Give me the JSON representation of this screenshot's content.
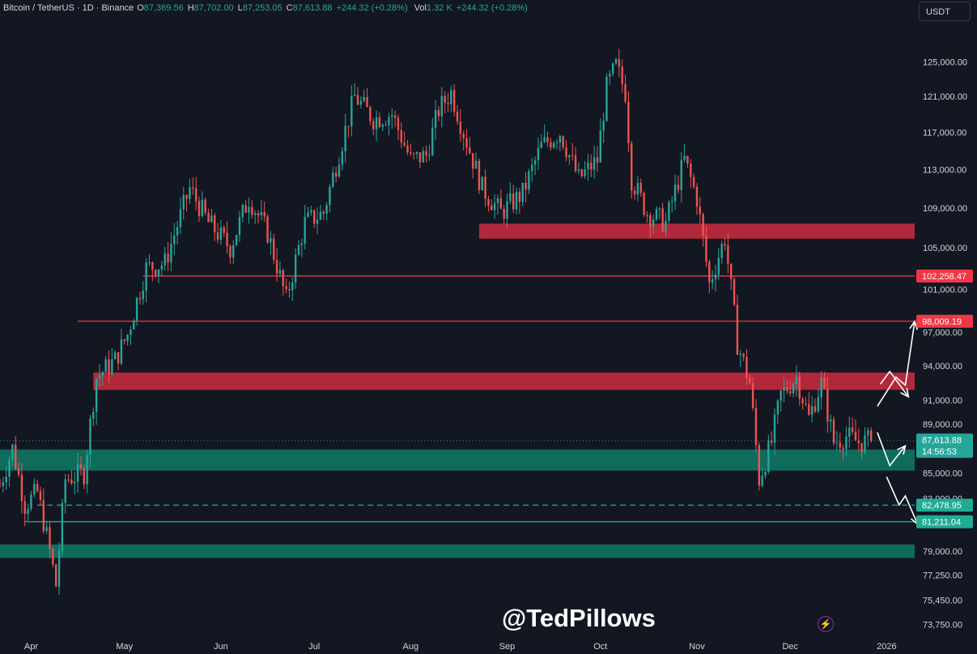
{
  "header": {
    "symbol": "Bitcoin / TetherUS · 1D · Binance",
    "open_label": "O",
    "open": "87,369.56",
    "high_label": "H",
    "high": "87,702.00",
    "low_label": "L",
    "low": "87,253.05",
    "close_label": "C",
    "close": "87,613.88",
    "change": "+244.32 (+0.28%)",
    "vol_label": "Vol",
    "vol": "1.32 K",
    "vol_change": "+244.32 (+0.28%)"
  },
  "currency_button": "USDT",
  "watermark": "@TedPillows",
  "colors": {
    "background": "#131722",
    "up": "#26a69a",
    "down": "#ef5350",
    "resistance_zone": "#b2283b",
    "support_zone": "#0f6b5c",
    "resistance_line": "#f23645",
    "support_line": "#22ab94"
  },
  "chart_data": {
    "type": "candlestick",
    "title": "Bitcoin / TetherUS · 1D · Binance",
    "x_tick_labels": [
      "Apr",
      "May",
      "Jun",
      "Jul",
      "Aug",
      "Sep",
      "Oct",
      "Nov",
      "Dec",
      "2026"
    ],
    "x_range": [
      "2025-03-22",
      "2026-01-10"
    ],
    "y_tick_labels": [
      "125,000.00",
      "121,000.00",
      "117,000.00",
      "113,000.00",
      "109,000.00",
      "105,000.00",
      "101,000.00",
      "97,000.00",
      "94,000.00",
      "91,000.00",
      "89,000.00",
      "85,000.00",
      "83,000.00",
      "79,000.00",
      "77,250.00",
      "75,450.00",
      "73,750.00"
    ],
    "y_scale": "log",
    "ylim": [
      73000,
      128500
    ],
    "last_price": "87,613.88",
    "countdown": "14:56:53",
    "price_labels": [
      {
        "value": "102,258.47",
        "kind": "resistance"
      },
      {
        "value": "98,009.19",
        "kind": "resistance"
      },
      {
        "value": "82,478.95",
        "kind": "support-dashed"
      },
      {
        "value": "81,211.04",
        "kind": "support"
      }
    ],
    "zones": [
      {
        "kind": "resistance",
        "from": 105900,
        "to": 107400,
        "start": "2025-08-23"
      },
      {
        "kind": "resistance",
        "from": 91900,
        "to": 93400,
        "start": "2025-04-21"
      },
      {
        "kind": "support",
        "from": 85200,
        "to": 86900,
        "start": "2025-03-22"
      },
      {
        "kind": "support",
        "from": 78500,
        "to": 79500,
        "start": "2025-03-22"
      }
    ],
    "lines": [
      {
        "value": 102258.47,
        "start": "2025-05-07",
        "style": "solid",
        "kind": "resistance"
      },
      {
        "value": 98009.19,
        "start": "2025-04-16",
        "style": "solid",
        "kind": "resistance"
      },
      {
        "value": 82478.95,
        "start": "2025-04-03",
        "style": "dashed",
        "kind": "support"
      },
      {
        "value": 81211.04,
        "start": "2025-03-30",
        "style": "solid",
        "kind": "support"
      }
    ],
    "closes": [
      {
        "date": "2025-03-22",
        "close": 84000
      },
      {
        "date": "2025-03-26",
        "close": 87000
      },
      {
        "date": "2025-03-30",
        "close": 82500
      },
      {
        "date": "2025-04-03",
        "close": 83500
      },
      {
        "date": "2025-04-07",
        "close": 79000
      },
      {
        "date": "2025-04-09",
        "close": 76500
      },
      {
        "date": "2025-04-12",
        "close": 84500
      },
      {
        "date": "2025-04-18",
        "close": 85000
      },
      {
        "date": "2025-04-22",
        "close": 93000
      },
      {
        "date": "2025-04-28",
        "close": 94500
      },
      {
        "date": "2025-05-02",
        "close": 96800
      },
      {
        "date": "2025-05-08",
        "close": 103000
      },
      {
        "date": "2025-05-14",
        "close": 103500
      },
      {
        "date": "2025-05-22",
        "close": 111000
      },
      {
        "date": "2025-05-28",
        "close": 107500
      },
      {
        "date": "2025-06-04",
        "close": 105000
      },
      {
        "date": "2025-06-10",
        "close": 110000
      },
      {
        "date": "2025-06-16",
        "close": 106500
      },
      {
        "date": "2025-06-22",
        "close": 100000
      },
      {
        "date": "2025-06-28",
        "close": 107500
      },
      {
        "date": "2025-07-04",
        "close": 108500
      },
      {
        "date": "2025-07-10",
        "close": 116000
      },
      {
        "date": "2025-07-14",
        "close": 121000
      },
      {
        "date": "2025-07-20",
        "close": 118500
      },
      {
        "date": "2025-07-26",
        "close": 119000
      },
      {
        "date": "2025-08-01",
        "close": 114000
      },
      {
        "date": "2025-08-06",
        "close": 114500
      },
      {
        "date": "2025-08-10",
        "close": 119500
      },
      {
        "date": "2025-08-14",
        "close": 121500
      },
      {
        "date": "2025-08-18",
        "close": 117000
      },
      {
        "date": "2025-08-24",
        "close": 111000
      },
      {
        "date": "2025-08-30",
        "close": 108500
      },
      {
        "date": "2025-09-06",
        "close": 110500
      },
      {
        "date": "2025-09-12",
        "close": 115500
      },
      {
        "date": "2025-09-18",
        "close": 117000
      },
      {
        "date": "2025-09-24",
        "close": 112000
      },
      {
        "date": "2025-09-30",
        "close": 114000
      },
      {
        "date": "2025-10-03",
        "close": 122000
      },
      {
        "date": "2025-10-06",
        "close": 124500
      },
      {
        "date": "2025-10-09",
        "close": 121500
      },
      {
        "date": "2025-10-11",
        "close": 112000
      },
      {
        "date": "2025-10-16",
        "close": 108500
      },
      {
        "date": "2025-10-22",
        "close": 107500
      },
      {
        "date": "2025-10-28",
        "close": 114000
      },
      {
        "date": "2025-11-01",
        "close": 110000
      },
      {
        "date": "2025-11-05",
        "close": 101500
      },
      {
        "date": "2025-11-10",
        "close": 106000
      },
      {
        "date": "2025-11-14",
        "close": 96000
      },
      {
        "date": "2025-11-18",
        "close": 92500
      },
      {
        "date": "2025-11-21",
        "close": 84500
      },
      {
        "date": "2025-11-25",
        "close": 87500
      },
      {
        "date": "2025-11-28",
        "close": 91500
      },
      {
        "date": "2025-12-03",
        "close": 93000
      },
      {
        "date": "2025-12-07",
        "close": 89500
      },
      {
        "date": "2025-12-11",
        "close": 92500
      },
      {
        "date": "2025-12-15",
        "close": 87500
      },
      {
        "date": "2025-12-19",
        "close": 88000
      },
      {
        "date": "2025-12-23",
        "close": 87500
      },
      {
        "date": "2025-12-27",
        "close": 87613.88
      }
    ],
    "annotations": [
      {
        "kind": "arrow",
        "path": [
          [
            "2025-12-29",
            90500
          ],
          [
            "2026-01-04",
            93000
          ],
          [
            "2026-01-07",
            92300
          ],
          [
            "2026-01-10",
            98000
          ]
        ]
      },
      {
        "kind": "arrow",
        "path": [
          [
            "2025-12-30",
            92400
          ],
          [
            "2026-01-02",
            93500
          ],
          [
            "2026-01-08",
            91300
          ]
        ]
      },
      {
        "kind": "arrow",
        "path": [
          [
            "2025-12-29",
            88300
          ],
          [
            "2026-01-02",
            85600
          ],
          [
            "2026-01-07",
            87200
          ]
        ]
      },
      {
        "kind": "arrow",
        "path": [
          [
            "2026-01-01",
            84700
          ],
          [
            "2026-01-05",
            82500
          ],
          [
            "2026-01-07",
            83200
          ],
          [
            "2026-01-11",
            81000
          ]
        ]
      }
    ]
  }
}
